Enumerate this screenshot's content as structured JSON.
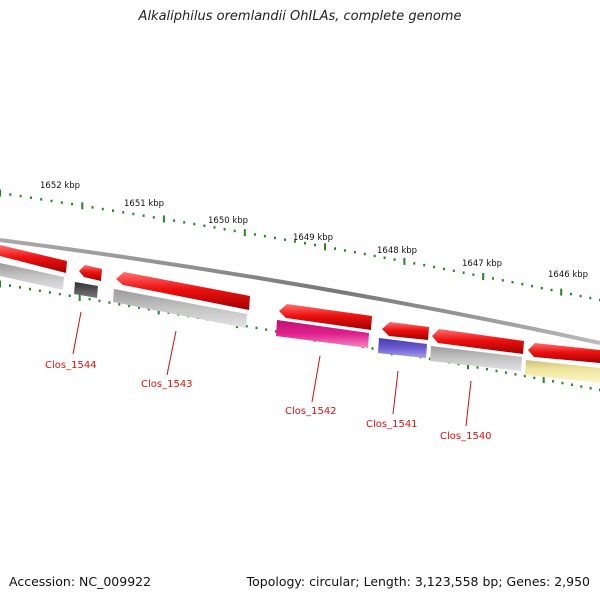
{
  "title": "Alkaliphilus oremlandii OhILAs, complete genome",
  "accession": "Accession: NC_009922",
  "summary": "Topology: circular; Length: 3,123,558 bp; Genes: 2,950",
  "scale_labels": [
    "1652 kbp",
    "1651 kbp",
    "1650 kbp",
    "1649 kbp",
    "1648 kbp",
    "1647 kbp",
    "1646 kbp"
  ],
  "gene_labels": [
    "Clos_1544",
    "Clos_1543",
    "Clos_1542",
    "Clos_1541",
    "Clos_1540"
  ],
  "colors": {
    "forward_gene": "#ee1111",
    "reverse_gene_grey": "#b5b5b5",
    "reverse_gene_dark": "#555555",
    "reverse_gene_magenta": "#e0208e",
    "reverse_gene_blue": "#6a5bd0",
    "reverse_gene_yellow": "#efe49a",
    "backbone": "#888888",
    "tick": "#228822",
    "label": "#cc1111"
  }
}
